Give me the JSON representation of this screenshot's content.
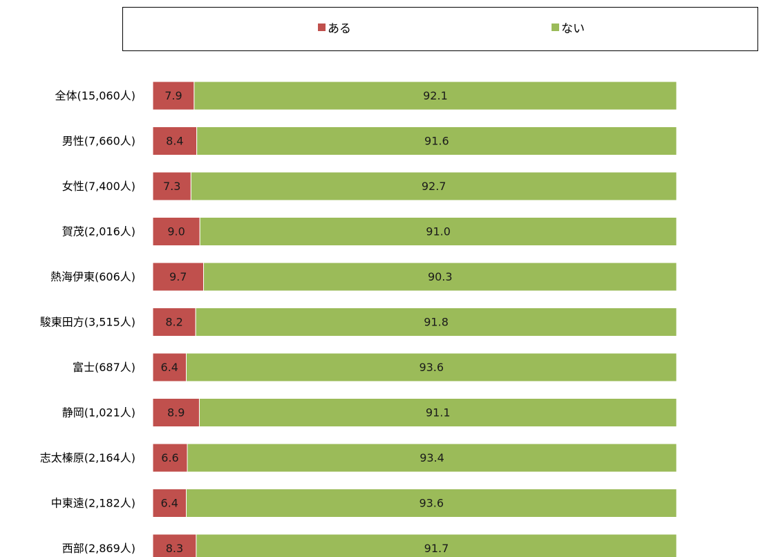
{
  "chart_data": {
    "type": "bar",
    "orientation": "horizontal",
    "stacked": true,
    "xlim": [
      0,
      100
    ],
    "categories": [
      "全体(15,060人)",
      "男性(7,660人)",
      "女性(7,400人)",
      "賀茂(2,016人)",
      "熱海伊東(606人)",
      "駿東田方(3,515人)",
      "富士(687人)",
      "静岡(1,021人)",
      "志太榛原(2,164人)",
      "中東遠(2,182人)",
      "西部(2,869人)"
    ],
    "series": [
      {
        "name": "ある",
        "color": "#c0504d",
        "values": [
          7.9,
          8.4,
          7.3,
          9.0,
          9.7,
          8.2,
          6.4,
          8.9,
          6.6,
          6.4,
          8.3
        ]
      },
      {
        "name": "ない",
        "color": "#9bbb59",
        "values": [
          92.1,
          91.6,
          92.7,
          91.0,
          90.3,
          91.8,
          93.6,
          91.1,
          93.4,
          93.6,
          91.7
        ]
      }
    ],
    "legend_position": "top",
    "grid": false
  }
}
